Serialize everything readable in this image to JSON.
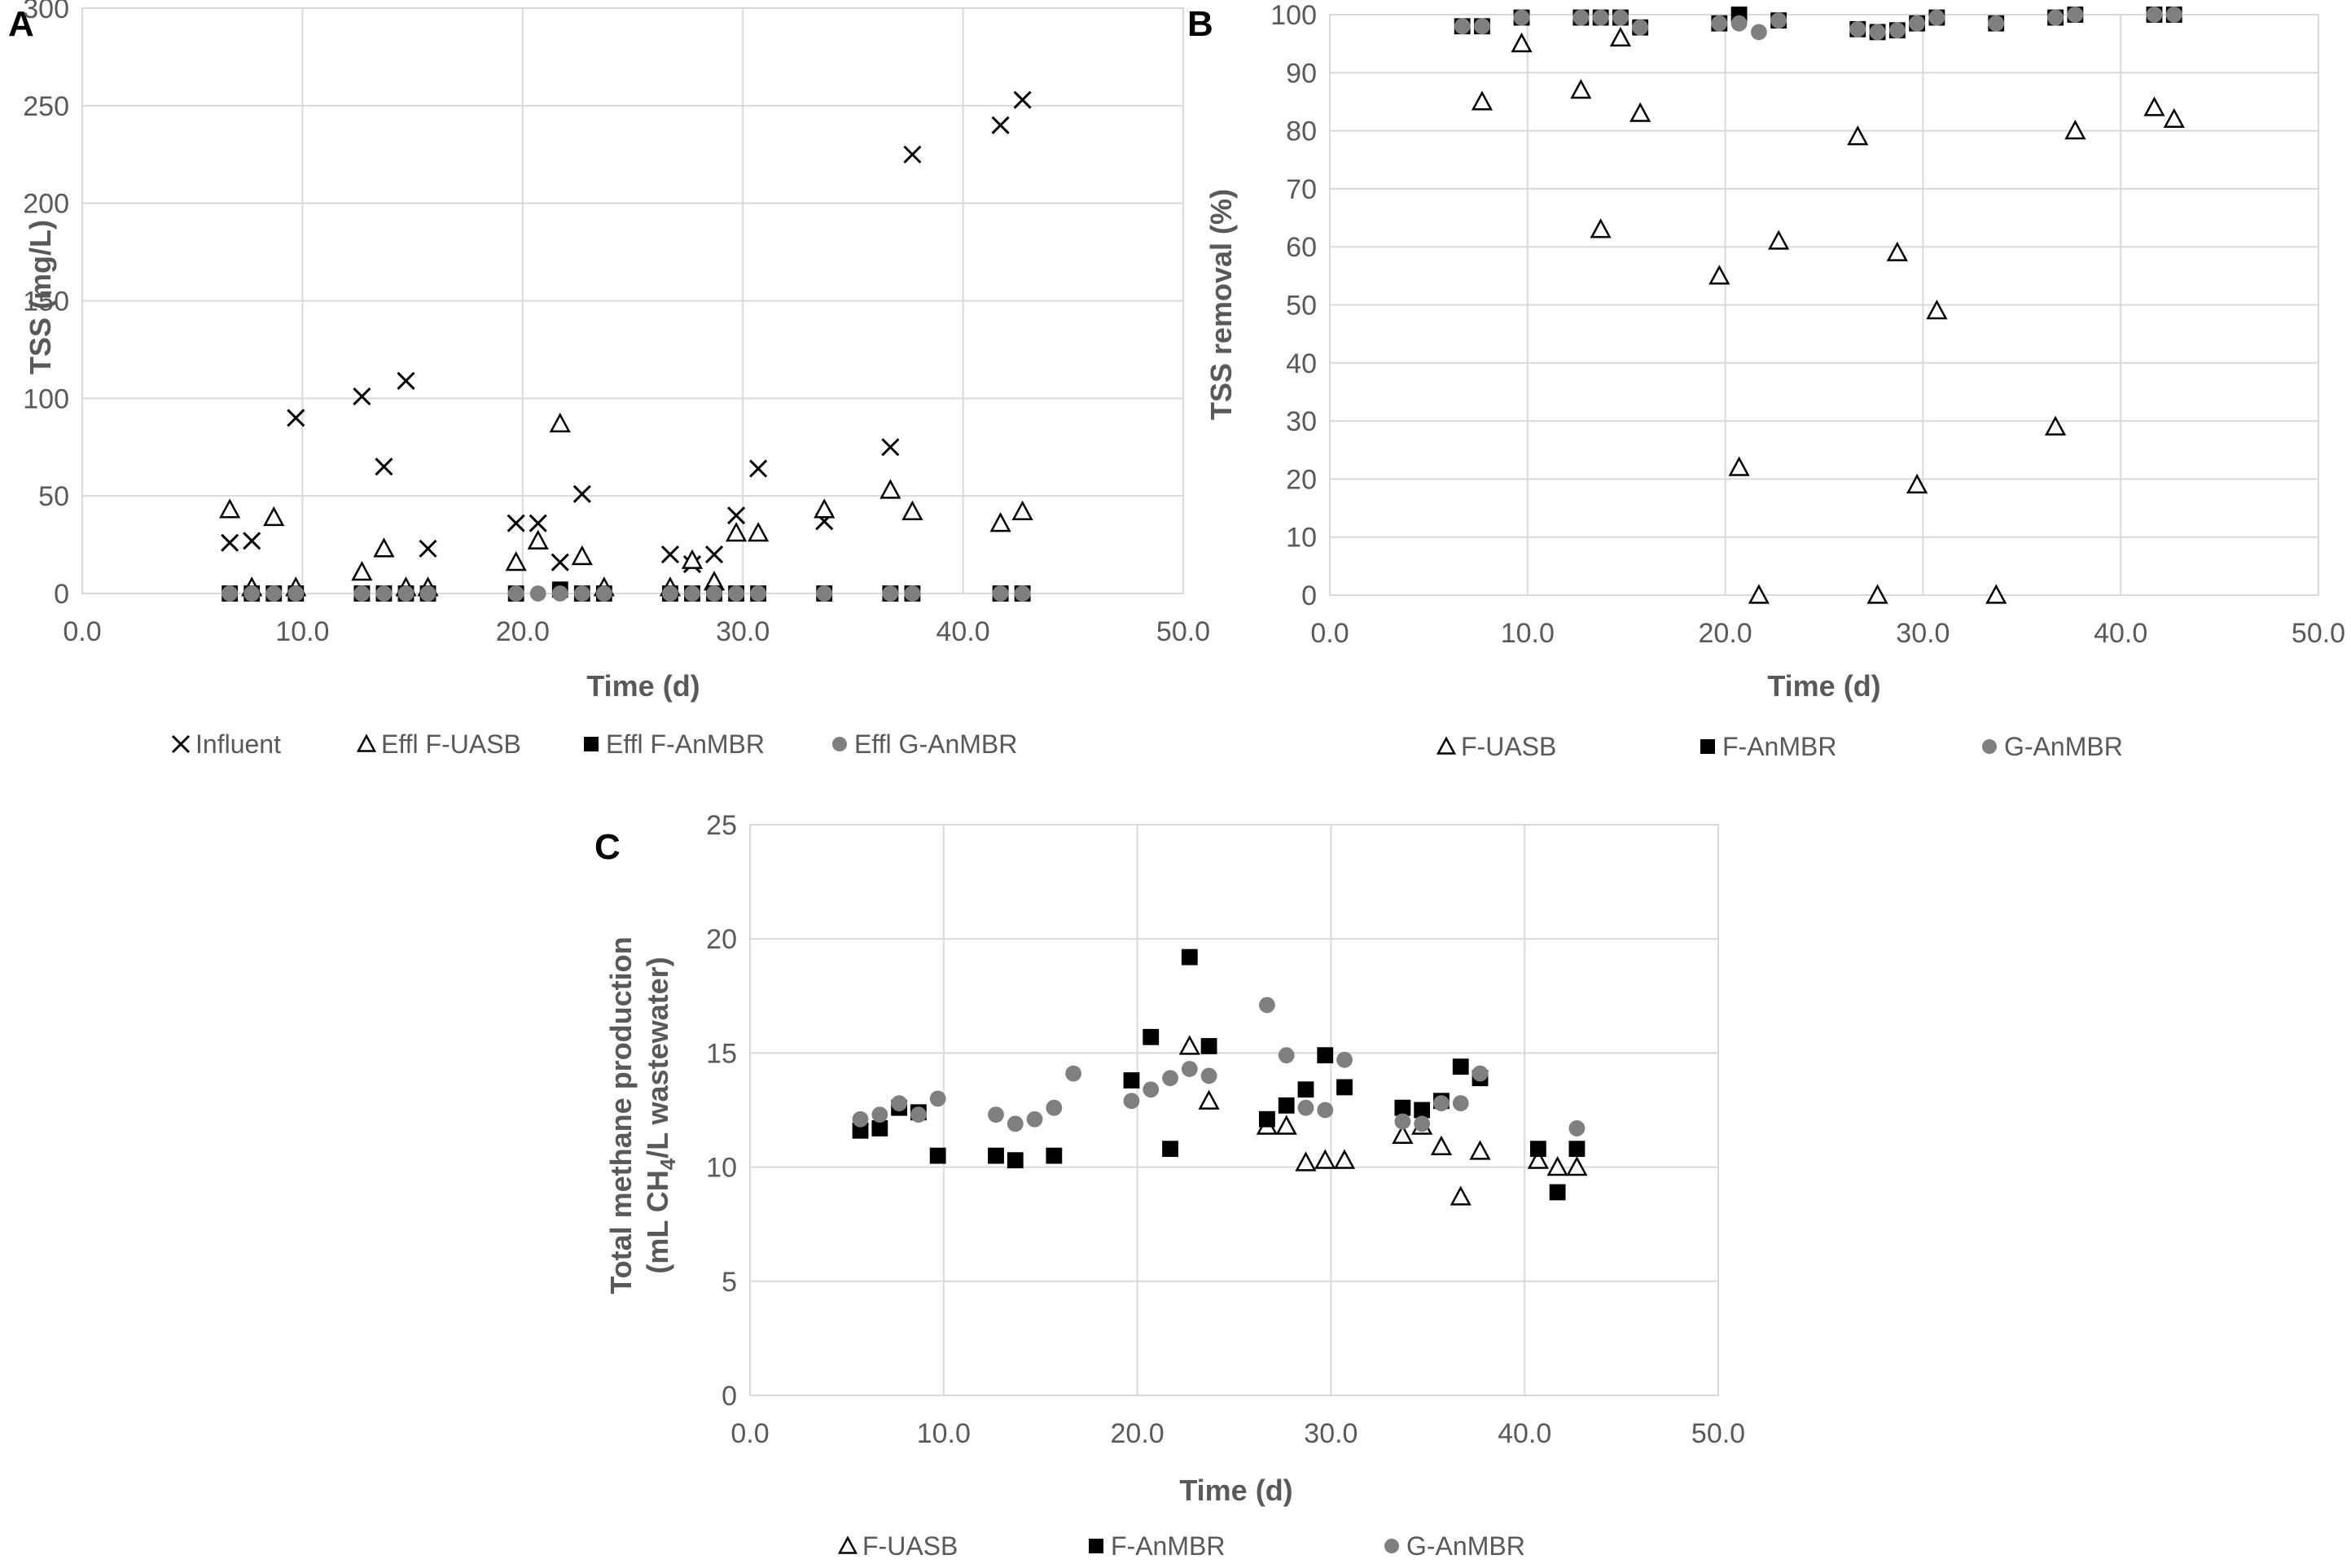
{
  "colors": {
    "uasb": "#000000",
    "fanmbr": "#000000",
    "ganmbr": "#7f7f7f",
    "influent": "#000000",
    "grid": "#d9d9d9"
  },
  "chart_data": [
    {
      "panel": "A",
      "type": "scatter",
      "xlabel": "Time (d)",
      "ylabel": "TSS (mg/L)",
      "xlim": [
        0,
        50
      ],
      "ylim": [
        0,
        300
      ],
      "xticks": [
        "0.0",
        "10.0",
        "20.0",
        "30.0",
        "40.0",
        "50.0"
      ],
      "yticks": [
        "0",
        "50",
        "100",
        "150",
        "200",
        "250",
        "300"
      ],
      "legend_position": "bottom",
      "series": [
        {
          "key": "influent",
          "name": "Influent",
          "marker": "x",
          "points": [
            [
              6.7,
              26
            ],
            [
              7.7,
              27
            ],
            [
              9.7,
              90
            ],
            [
              12.7,
              101
            ],
            [
              13.7,
              65
            ],
            [
              14.7,
              109
            ],
            [
              15.7,
              23
            ],
            [
              19.7,
              36
            ],
            [
              20.7,
              36
            ],
            [
              21.7,
              16
            ],
            [
              22.7,
              51
            ],
            [
              26.7,
              20
            ],
            [
              27.7,
              15
            ],
            [
              28.7,
              20
            ],
            [
              29.7,
              40
            ],
            [
              30.7,
              64
            ],
            [
              33.7,
              37
            ],
            [
              36.7,
              75
            ],
            [
              37.7,
              225
            ],
            [
              41.7,
              240
            ],
            [
              42.7,
              253
            ]
          ]
        },
        {
          "key": "uasb",
          "name": "Effl F-UASB",
          "marker": "triangle",
          "points": [
            [
              6.7,
              43
            ],
            [
              7.7,
              3
            ],
            [
              8.7,
              39
            ],
            [
              9.7,
              3
            ],
            [
              12.7,
              11
            ],
            [
              13.7,
              23
            ],
            [
              14.7,
              3
            ],
            [
              15.7,
              3
            ],
            [
              19.7,
              16
            ],
            [
              20.7,
              27
            ],
            [
              21.7,
              87
            ],
            [
              22.7,
              19
            ],
            [
              23.7,
              3
            ],
            [
              26.7,
              3
            ],
            [
              27.7,
              17
            ],
            [
              28.7,
              6
            ],
            [
              29.7,
              31
            ],
            [
              30.7,
              31
            ],
            [
              33.7,
              43
            ],
            [
              36.7,
              53
            ],
            [
              37.7,
              42
            ],
            [
              41.7,
              36
            ],
            [
              42.7,
              42
            ]
          ]
        },
        {
          "key": "fanmbr",
          "name": "Effl F-AnMBR",
          "marker": "square",
          "points": [
            [
              6.7,
              0
            ],
            [
              7.7,
              0
            ],
            [
              8.7,
              0
            ],
            [
              9.7,
              0
            ],
            [
              12.7,
              0
            ],
            [
              13.7,
              0
            ],
            [
              14.7,
              0
            ],
            [
              15.7,
              0
            ],
            [
              19.7,
              0
            ],
            [
              21.7,
              2
            ],
            [
              22.7,
              0
            ],
            [
              23.7,
              0
            ],
            [
              26.7,
              0
            ],
            [
              27.7,
              0
            ],
            [
              28.7,
              0
            ],
            [
              29.7,
              0
            ],
            [
              30.7,
              0
            ],
            [
              33.7,
              0
            ],
            [
              36.7,
              0
            ],
            [
              37.7,
              0
            ],
            [
              41.7,
              0
            ],
            [
              42.7,
              0
            ]
          ]
        },
        {
          "key": "ganmbr",
          "name": "Effl G-AnMBR",
          "marker": "circle",
          "points": [
            [
              6.7,
              0
            ],
            [
              7.7,
              0
            ],
            [
              8.7,
              0
            ],
            [
              9.7,
              0
            ],
            [
              12.7,
              0
            ],
            [
              13.7,
              0
            ],
            [
              14.7,
              0
            ],
            [
              15.7,
              0
            ],
            [
              19.7,
              0
            ],
            [
              20.7,
              0
            ],
            [
              21.7,
              0
            ],
            [
              22.7,
              0
            ],
            [
              23.7,
              0
            ],
            [
              26.7,
              0
            ],
            [
              27.7,
              0
            ],
            [
              28.7,
              0
            ],
            [
              29.7,
              0
            ],
            [
              30.7,
              0
            ],
            [
              33.7,
              0
            ],
            [
              36.7,
              0
            ],
            [
              37.7,
              0
            ],
            [
              41.7,
              0
            ],
            [
              42.7,
              0
            ]
          ]
        }
      ]
    },
    {
      "panel": "B",
      "type": "scatter",
      "xlabel": "Time (d)",
      "ylabel": "TSS removal (%)",
      "xlim": [
        0,
        50
      ],
      "ylim": [
        0,
        100
      ],
      "xticks": [
        "0.0",
        "10.0",
        "20.0",
        "30.0",
        "40.0",
        "50.0"
      ],
      "yticks": [
        "0",
        "10",
        "20",
        "30",
        "40",
        "50",
        "60",
        "70",
        "80",
        "90",
        "100"
      ],
      "legend_position": "bottom",
      "series": [
        {
          "key": "uasb",
          "name": "F-UASB",
          "marker": "triangle",
          "points": [
            [
              7.7,
              85
            ],
            [
              9.7,
              95
            ],
            [
              12.7,
              87
            ],
            [
              13.7,
              63
            ],
            [
              14.7,
              96
            ],
            [
              15.7,
              83
            ],
            [
              19.7,
              55
            ],
            [
              20.7,
              22
            ],
            [
              21.7,
              0
            ],
            [
              22.7,
              61
            ],
            [
              26.7,
              79
            ],
            [
              27.7,
              0
            ],
            [
              28.7,
              59
            ],
            [
              29.7,
              19
            ],
            [
              30.7,
              49
            ],
            [
              33.7,
              0
            ],
            [
              36.7,
              29
            ],
            [
              37.7,
              80
            ],
            [
              41.7,
              84
            ],
            [
              42.7,
              82
            ]
          ]
        },
        {
          "key": "fanmbr",
          "name": "F-AnMBR",
          "marker": "square",
          "points": [
            [
              6.7,
              98
            ],
            [
              7.7,
              98
            ],
            [
              9.7,
              99.5
            ],
            [
              12.7,
              99.5
            ],
            [
              13.7,
              99.5
            ],
            [
              14.7,
              99.5
            ],
            [
              15.7,
              97.8
            ],
            [
              19.7,
              98.5
            ],
            [
              20.7,
              100
            ],
            [
              22.7,
              99
            ],
            [
              26.7,
              97.5
            ],
            [
              27.7,
              97
            ],
            [
              28.7,
              97.3
            ],
            [
              29.7,
              98.5
            ],
            [
              30.7,
              99.5
            ],
            [
              33.7,
              98.5
            ],
            [
              36.7,
              99.5
            ],
            [
              37.7,
              100
            ],
            [
              41.7,
              100
            ],
            [
              42.7,
              100
            ]
          ]
        },
        {
          "key": "ganmbr",
          "name": "G-AnMBR",
          "marker": "circle",
          "points": [
            [
              6.7,
              98
            ],
            [
              7.7,
              98
            ],
            [
              9.7,
              99.5
            ],
            [
              12.7,
              99.5
            ],
            [
              13.7,
              99.5
            ],
            [
              14.7,
              99.5
            ],
            [
              15.7,
              97.8
            ],
            [
              19.7,
              98.5
            ],
            [
              20.7,
              98.5
            ],
            [
              21.7,
              97
            ],
            [
              22.7,
              99
            ],
            [
              26.7,
              97.5
            ],
            [
              27.7,
              97
            ],
            [
              28.7,
              97.3
            ],
            [
              29.7,
              98.5
            ],
            [
              30.7,
              99.5
            ],
            [
              33.7,
              98.5
            ],
            [
              36.7,
              99.5
            ],
            [
              37.7,
              100
            ],
            [
              41.7,
              100
            ],
            [
              42.7,
              100
            ]
          ]
        }
      ]
    },
    {
      "panel": "C",
      "type": "scatter",
      "xlabel": "Time (d)",
      "ylabel_line1": "Total methane production",
      "ylabel_line2_pre": "(mL CH",
      "ylabel_line2_sub": "4",
      "ylabel_line2_post": "/L wastewater)",
      "xlim": [
        0,
        50
      ],
      "ylim": [
        0,
        25
      ],
      "xticks": [
        "0.0",
        "10.0",
        "20.0",
        "30.0",
        "40.0",
        "50.0"
      ],
      "yticks": [
        "0",
        "5",
        "10",
        "15",
        "20",
        "25"
      ],
      "legend_position": "bottom",
      "series": [
        {
          "key": "uasb",
          "name": "F-UASB",
          "marker": "triangle",
          "points": [
            [
              22.7,
              15.3
            ],
            [
              23.7,
              12.9
            ],
            [
              26.7,
              11.8
            ],
            [
              27.7,
              11.8
            ],
            [
              28.7,
              10.2
            ],
            [
              29.7,
              10.3
            ],
            [
              30.7,
              10.3
            ],
            [
              33.7,
              11.4
            ],
            [
              34.7,
              11.8
            ],
            [
              35.7,
              10.9
            ],
            [
              36.7,
              8.7
            ],
            [
              37.7,
              10.7
            ],
            [
              40.7,
              10.3
            ],
            [
              41.7,
              10.0
            ],
            [
              42.7,
              10.0
            ]
          ]
        },
        {
          "key": "fanmbr",
          "name": "F-AnMBR",
          "marker": "square",
          "points": [
            [
              5.7,
              11.6
            ],
            [
              6.7,
              11.7
            ],
            [
              7.7,
              12.6
            ],
            [
              8.7,
              12.4
            ],
            [
              9.7,
              10.5
            ],
            [
              12.7,
              10.5
            ],
            [
              13.7,
              10.3
            ],
            [
              15.7,
              10.5
            ],
            [
              19.7,
              13.8
            ],
            [
              20.7,
              15.7
            ],
            [
              21.7,
              10.8
            ],
            [
              22.7,
              19.2
            ],
            [
              23.7,
              15.3
            ],
            [
              26.7,
              12.1
            ],
            [
              27.7,
              12.7
            ],
            [
              28.7,
              13.4
            ],
            [
              29.7,
              14.9
            ],
            [
              30.7,
              13.5
            ],
            [
              33.7,
              12.6
            ],
            [
              34.7,
              12.5
            ],
            [
              35.7,
              12.9
            ],
            [
              36.7,
              14.4
            ],
            [
              37.7,
              13.9
            ],
            [
              40.7,
              10.8
            ],
            [
              41.7,
              8.9
            ],
            [
              42.7,
              10.8
            ]
          ]
        },
        {
          "key": "ganmbr",
          "name": "G-AnMBR",
          "marker": "circle",
          "points": [
            [
              5.7,
              12.1
            ],
            [
              6.7,
              12.3
            ],
            [
              7.7,
              12.8
            ],
            [
              8.7,
              12.3
            ],
            [
              9.7,
              13.0
            ],
            [
              12.7,
              12.3
            ],
            [
              13.7,
              11.9
            ],
            [
              14.7,
              12.1
            ],
            [
              15.7,
              12.6
            ],
            [
              16.7,
              14.1
            ],
            [
              19.7,
              12.9
            ],
            [
              20.7,
              13.4
            ],
            [
              21.7,
              13.9
            ],
            [
              22.7,
              14.3
            ],
            [
              23.7,
              14.0
            ],
            [
              26.7,
              17.1
            ],
            [
              27.7,
              14.9
            ],
            [
              28.7,
              12.6
            ],
            [
              29.7,
              12.5
            ],
            [
              30.7,
              14.7
            ],
            [
              33.7,
              12.0
            ],
            [
              34.7,
              11.9
            ],
            [
              35.7,
              12.8
            ],
            [
              36.7,
              12.8
            ],
            [
              37.7,
              14.1
            ],
            [
              42.7,
              11.7
            ]
          ]
        }
      ]
    }
  ]
}
